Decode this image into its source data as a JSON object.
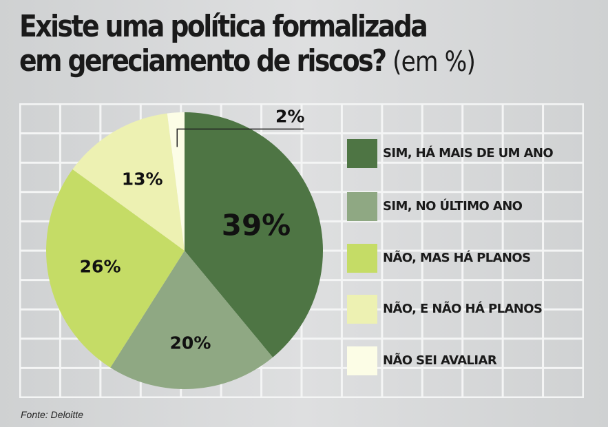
{
  "title_line1": "Existe uma política formalizada",
  "title_line2": "em gereciamento de riscos?",
  "title_unit": "(em %)",
  "source": "Fonte: Deloitte",
  "chart_data": {
    "type": "pie",
    "categories": [
      "SIM, HÁ MAIS DE UM ANO",
      "SIM, NO ÚLTIMO ANO",
      "NÃO, MAS HÁ PLANOS",
      "NÃO, E NÃO HÁ PLANOS",
      "NÃO SEI AVALIAR"
    ],
    "values": [
      39,
      20,
      26,
      13,
      2
    ],
    "labels": [
      "39%",
      "20%",
      "26%",
      "13%",
      "2%"
    ],
    "colors": [
      "#4e7544",
      "#8fa883",
      "#c5dc66",
      "#edf1b2",
      "#fcfde6"
    ],
    "legend_placement": "right"
  }
}
